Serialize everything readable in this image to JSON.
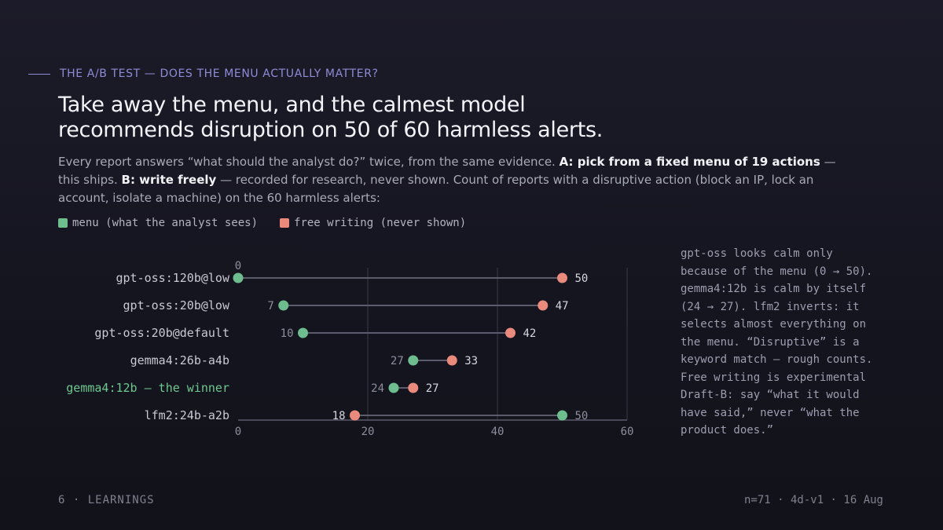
{
  "eyebrow": "THE A/B TEST — DOES THE MENU ACTUALLY MATTER?",
  "headline": {
    "line1": "Take away the menu, and the calmest model",
    "line2": "recommends disruption on 50 of 60 harmless alerts."
  },
  "lede": {
    "p1": "Every report answers “what should the analyst do?” twice, from the same evidence. ",
    "b1": "A: pick from a fixed menu of 19 actions",
    "p2": " — this ships. ",
    "b2": "B: write freely",
    "p3": " — recorded for research, never shown. Count of reports with a disruptive action (block an IP, lock an account, isolate a machine) on the 60 harmless alerts:"
  },
  "legend": {
    "menu": "menu (what the analyst sees)",
    "free": "free writing (never shown)"
  },
  "colors": {
    "menu": "#6dbd8e",
    "free": "#ea8a7d",
    "winner_label": "#6dc98f",
    "grid": "#3a3a4a",
    "axis": "#5a5a6a"
  },
  "chart_data": {
    "type": "dumbbell",
    "xlim": [
      0,
      60
    ],
    "x_ticks": [
      "0",
      "20",
      "40",
      "60"
    ],
    "series": [
      {
        "name": "menu (what the analyst sees)",
        "key": "menu"
      },
      {
        "name": "free writing (never shown)",
        "key": "free"
      }
    ],
    "rows": [
      {
        "label": "gpt-oss:120b@low",
        "menu": 0,
        "free": 50,
        "winner": false
      },
      {
        "label": "gpt-oss:20b@low",
        "menu": 7,
        "free": 47,
        "winner": false
      },
      {
        "label": "gpt-oss:20b@default",
        "menu": 10,
        "free": 42,
        "winner": false
      },
      {
        "label": "gemma4:26b-a4b",
        "menu": 27,
        "free": 33,
        "winner": false
      },
      {
        "label": "gemma4:12b — the winner",
        "menu": 24,
        "free": 27,
        "winner": true
      },
      {
        "label": "lfm2:24b-a2b",
        "menu": 50,
        "free": 18,
        "winner": false
      }
    ]
  },
  "aside": "gpt-oss looks calm only because of the menu (0 → 50). gemma4:12b is calm by itself (24 → 27). lfm2 inverts: it selects almost everything on the menu. “Disruptive” is a keyword match — rough counts. Free writing is experimental Draft-B: say “what it would have said,” never “what the product does.”",
  "footer": {
    "left": "6 · LEARNINGS",
    "right": "n=71 · 4d-v1 · 16 Aug"
  }
}
